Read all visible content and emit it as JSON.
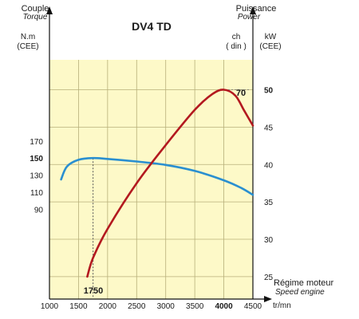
{
  "chart_data": {
    "type": "line",
    "title": "DV4 TD",
    "x_axis": {
      "label": "Régime moteur",
      "label_sub": "Speed engine",
      "unit": "tr/mn",
      "range": [
        1000,
        4500
      ],
      "ticks": [
        "1000",
        "1500",
        "2000",
        "2500",
        "3000",
        "3500",
        "4000",
        "4500"
      ],
      "bold_ticks": [
        "4000"
      ],
      "annotation": "1750"
    },
    "y_left": {
      "label": "Couple",
      "label_sub": "Torque",
      "unit": "N.m",
      "unit_sub": "(CEE)",
      "range": [
        -15,
        265
      ],
      "ticks": [
        "90",
        "110",
        "130",
        "150",
        "170"
      ],
      "bold_ticks": [
        "150"
      ]
    },
    "y_right": {
      "label": "Puissance",
      "label_sub": "Power",
      "unit_ch": "ch",
      "unit_ch_sub": "( din )",
      "unit_kw": "kW",
      "unit_kw_sub": "(CEE)",
      "range": [
        22,
        54
      ],
      "ticks": [
        "25",
        "30",
        "35",
        "40",
        "45",
        "50"
      ],
      "bold_ticks": [
        "50"
      ],
      "peak_ch": "70"
    },
    "series": [
      {
        "color": "#2a8fd0",
        "axis": "left",
        "x": [
          1200,
          1300,
          1500,
          1750,
          2000,
          2500,
          3000,
          3500,
          4000,
          4300,
          4500
        ],
        "y": [
          125,
          140,
          148,
          150,
          149,
          146,
          142,
          135,
          124,
          115,
          107
        ]
      },
      {
        "color": "#b3191f",
        "axis": "right",
        "x": [
          1650,
          1750,
          2000,
          2500,
          3000,
          3500,
          3800,
          4000,
          4200,
          4350,
          4500
        ],
        "y": [
          25.0,
          27.5,
          31.4,
          37.5,
          42.6,
          47.3,
          49.4,
          50.0,
          49.2,
          47.2,
          45.2
        ]
      }
    ],
    "grid": true,
    "background": "#fdf9c8"
  }
}
